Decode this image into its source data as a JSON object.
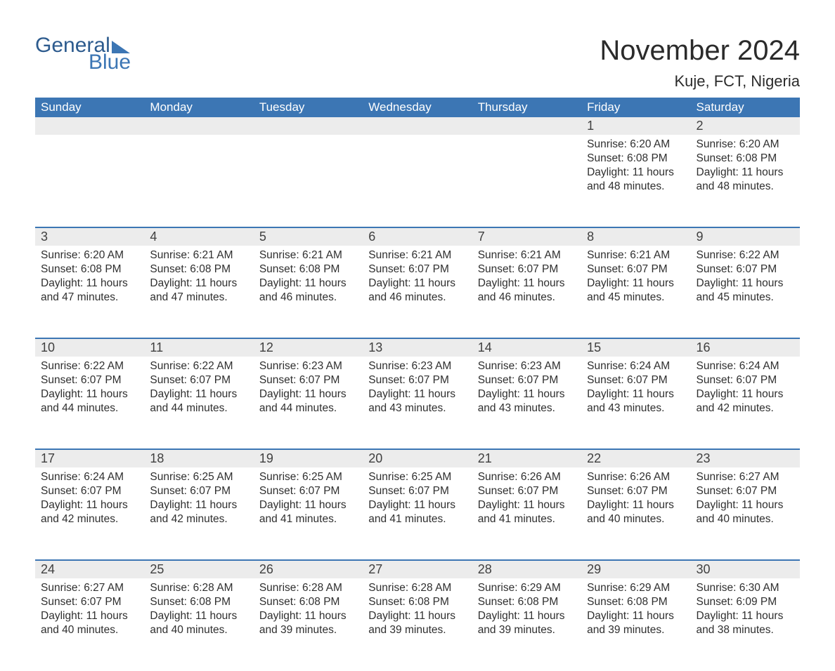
{
  "logo": {
    "word1": "General",
    "word2": "Blue"
  },
  "title": "November 2024",
  "location": "Kuje, FCT, Nigeria",
  "colors": {
    "header_bg": "#3c76b4",
    "header_text": "#ffffff",
    "row_border": "#3c76b4",
    "daynum_bg": "#ececec",
    "text": "#2f2f2f",
    "logo_dark": "#2d5b8e",
    "logo_light": "#3c76b4",
    "background": "#ffffff"
  },
  "typography": {
    "title_fontsize": 40,
    "location_fontsize": 22,
    "weekday_fontsize": 17,
    "daynum_fontsize": 18,
    "body_fontsize": 15.5
  },
  "layout": {
    "columns": 7,
    "rows": 5,
    "first_day_column": 5
  },
  "weekdays": [
    "Sunday",
    "Monday",
    "Tuesday",
    "Wednesday",
    "Thursday",
    "Friday",
    "Saturday"
  ],
  "days": [
    {
      "n": 1,
      "sunrise": "6:20 AM",
      "sunset": "6:08 PM",
      "daylight": "11 hours and 48 minutes."
    },
    {
      "n": 2,
      "sunrise": "6:20 AM",
      "sunset": "6:08 PM",
      "daylight": "11 hours and 48 minutes."
    },
    {
      "n": 3,
      "sunrise": "6:20 AM",
      "sunset": "6:08 PM",
      "daylight": "11 hours and 47 minutes."
    },
    {
      "n": 4,
      "sunrise": "6:21 AM",
      "sunset": "6:08 PM",
      "daylight": "11 hours and 47 minutes."
    },
    {
      "n": 5,
      "sunrise": "6:21 AM",
      "sunset": "6:08 PM",
      "daylight": "11 hours and 46 minutes."
    },
    {
      "n": 6,
      "sunrise": "6:21 AM",
      "sunset": "6:07 PM",
      "daylight": "11 hours and 46 minutes."
    },
    {
      "n": 7,
      "sunrise": "6:21 AM",
      "sunset": "6:07 PM",
      "daylight": "11 hours and 46 minutes."
    },
    {
      "n": 8,
      "sunrise": "6:21 AM",
      "sunset": "6:07 PM",
      "daylight": "11 hours and 45 minutes."
    },
    {
      "n": 9,
      "sunrise": "6:22 AM",
      "sunset": "6:07 PM",
      "daylight": "11 hours and 45 minutes."
    },
    {
      "n": 10,
      "sunrise": "6:22 AM",
      "sunset": "6:07 PM",
      "daylight": "11 hours and 44 minutes."
    },
    {
      "n": 11,
      "sunrise": "6:22 AM",
      "sunset": "6:07 PM",
      "daylight": "11 hours and 44 minutes."
    },
    {
      "n": 12,
      "sunrise": "6:23 AM",
      "sunset": "6:07 PM",
      "daylight": "11 hours and 44 minutes."
    },
    {
      "n": 13,
      "sunrise": "6:23 AM",
      "sunset": "6:07 PM",
      "daylight": "11 hours and 43 minutes."
    },
    {
      "n": 14,
      "sunrise": "6:23 AM",
      "sunset": "6:07 PM",
      "daylight": "11 hours and 43 minutes."
    },
    {
      "n": 15,
      "sunrise": "6:24 AM",
      "sunset": "6:07 PM",
      "daylight": "11 hours and 43 minutes."
    },
    {
      "n": 16,
      "sunrise": "6:24 AM",
      "sunset": "6:07 PM",
      "daylight": "11 hours and 42 minutes."
    },
    {
      "n": 17,
      "sunrise": "6:24 AM",
      "sunset": "6:07 PM",
      "daylight": "11 hours and 42 minutes."
    },
    {
      "n": 18,
      "sunrise": "6:25 AM",
      "sunset": "6:07 PM",
      "daylight": "11 hours and 42 minutes."
    },
    {
      "n": 19,
      "sunrise": "6:25 AM",
      "sunset": "6:07 PM",
      "daylight": "11 hours and 41 minutes."
    },
    {
      "n": 20,
      "sunrise": "6:25 AM",
      "sunset": "6:07 PM",
      "daylight": "11 hours and 41 minutes."
    },
    {
      "n": 21,
      "sunrise": "6:26 AM",
      "sunset": "6:07 PM",
      "daylight": "11 hours and 41 minutes."
    },
    {
      "n": 22,
      "sunrise": "6:26 AM",
      "sunset": "6:07 PM",
      "daylight": "11 hours and 40 minutes."
    },
    {
      "n": 23,
      "sunrise": "6:27 AM",
      "sunset": "6:07 PM",
      "daylight": "11 hours and 40 minutes."
    },
    {
      "n": 24,
      "sunrise": "6:27 AM",
      "sunset": "6:07 PM",
      "daylight": "11 hours and 40 minutes."
    },
    {
      "n": 25,
      "sunrise": "6:28 AM",
      "sunset": "6:08 PM",
      "daylight": "11 hours and 40 minutes."
    },
    {
      "n": 26,
      "sunrise": "6:28 AM",
      "sunset": "6:08 PM",
      "daylight": "11 hours and 39 minutes."
    },
    {
      "n": 27,
      "sunrise": "6:28 AM",
      "sunset": "6:08 PM",
      "daylight": "11 hours and 39 minutes."
    },
    {
      "n": 28,
      "sunrise": "6:29 AM",
      "sunset": "6:08 PM",
      "daylight": "11 hours and 39 minutes."
    },
    {
      "n": 29,
      "sunrise": "6:29 AM",
      "sunset": "6:08 PM",
      "daylight": "11 hours and 39 minutes."
    },
    {
      "n": 30,
      "sunrise": "6:30 AM",
      "sunset": "6:09 PM",
      "daylight": "11 hours and 38 minutes."
    }
  ],
  "labels": {
    "sunrise": "Sunrise:",
    "sunset": "Sunset:",
    "daylight": "Daylight:"
  }
}
